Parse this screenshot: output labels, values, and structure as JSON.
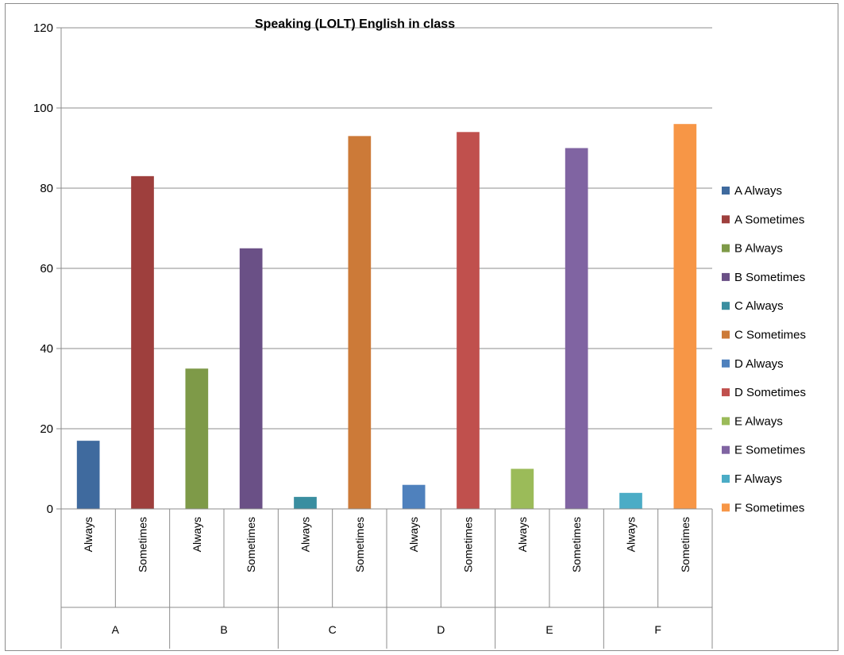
{
  "chart_data": {
    "type": "bar",
    "title": "Speaking  (LOLT) English in class",
    "xlabel": "",
    "ylabel": "",
    "ylim": [
      0,
      120
    ],
    "yticks": [
      0,
      20,
      40,
      60,
      80,
      100,
      120
    ],
    "grid": true,
    "legend_position": "right",
    "groups": [
      "A",
      "B",
      "C",
      "D",
      "E",
      "F"
    ],
    "subcategories": [
      "Always",
      "Sometimes"
    ],
    "series": [
      {
        "name": "A Always",
        "group": "A",
        "sub": "Always",
        "value": 17,
        "color": "#3F6A9E"
      },
      {
        "name": "A Sometimes",
        "group": "A",
        "sub": "Sometimes",
        "value": 83,
        "color": "#9E3F3D"
      },
      {
        "name": "B Always",
        "group": "B",
        "sub": "Always",
        "value": 35,
        "color": "#7E9A48"
      },
      {
        "name": "B Sometimes",
        "group": "B",
        "sub": "Sometimes",
        "value": 65,
        "color": "#6A5086"
      },
      {
        "name": "C Always",
        "group": "C",
        "sub": "Always",
        "value": 3,
        "color": "#3A8EA0"
      },
      {
        "name": "C Sometimes",
        "group": "C",
        "sub": "Sometimes",
        "value": 93,
        "color": "#CC7A38"
      },
      {
        "name": "D Always",
        "group": "D",
        "sub": "Always",
        "value": 6,
        "color": "#4F81BD"
      },
      {
        "name": "D Sometimes",
        "group": "D",
        "sub": "Sometimes",
        "value": 94,
        "color": "#C0504D"
      },
      {
        "name": "E Always",
        "group": "E",
        "sub": "Always",
        "value": 10,
        "color": "#9BBB59"
      },
      {
        "name": "E Sometimes",
        "group": "E",
        "sub": "Sometimes",
        "value": 90,
        "color": "#8064A2"
      },
      {
        "name": "F Always",
        "group": "F",
        "sub": "Always",
        "value": 4,
        "color": "#4BACC6"
      },
      {
        "name": "F Sometimes",
        "group": "F",
        "sub": "Sometimes",
        "value": 96,
        "color": "#F79646"
      }
    ]
  }
}
